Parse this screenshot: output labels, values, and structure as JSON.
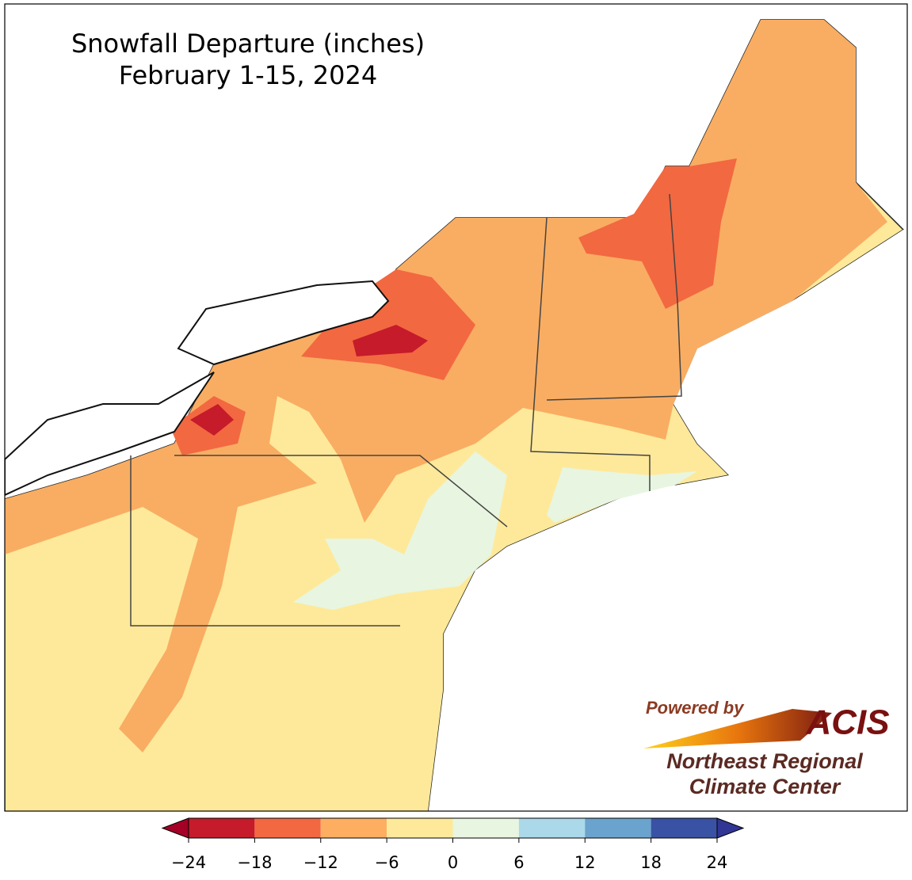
{
  "title": [
    "Snowfall Departure (inches)",
    "February 1-15, 2024"
  ],
  "colorbar": {
    "lim": [
      -24,
      24
    ],
    "ticks": [
      {
        "value": -24,
        "label": "−24"
      },
      {
        "value": -18,
        "label": "−18"
      },
      {
        "value": -12,
        "label": "−12"
      },
      {
        "value": -6,
        "label": "−6"
      },
      0,
      6,
      12,
      18,
      24
    ],
    "colors": [
      "#c51b2a",
      "#f26841",
      "#fdae61",
      "#fee99a",
      "#e8f5e0",
      "#abd9e9",
      "#6aa3cd",
      "#3a52a3"
    ],
    "under_color": "#a50026",
    "over_color": "#313695"
  },
  "logo": {
    "tagline": "Powered by",
    "brand": "ACIS",
    "org": [
      "Northeast Regional",
      "Climate Center"
    ]
  }
}
